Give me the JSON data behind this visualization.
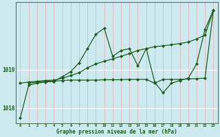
{
  "xlabel": "Graphe pression niveau de la mer (hPa)",
  "background_color": "#cce9f0",
  "plot_bg_color": "#cce9f0",
  "line_color": "#1a5c1a",
  "ylim": [
    1017.6,
    1020.75
  ],
  "xlim": [
    -0.5,
    23.5
  ],
  "yticks": [
    1018,
    1019
  ],
  "xticks": [
    0,
    1,
    2,
    3,
    4,
    5,
    6,
    7,
    8,
    9,
    10,
    11,
    12,
    13,
    14,
    15,
    16,
    17,
    18,
    19,
    20,
    21,
    22,
    23
  ],
  "series": [
    {
      "x": [
        0,
        1,
        2,
        3,
        4,
        5,
        6,
        7,
        8,
        9,
        10,
        11,
        12,
        13,
        14,
        15,
        16,
        17,
        18,
        19,
        20,
        21,
        22,
        23
      ],
      "y": [
        1018.65,
        1018.68,
        1018.7,
        1018.72,
        1018.73,
        1018.78,
        1018.85,
        1018.92,
        1019.05,
        1019.15,
        1019.22,
        1019.28,
        1019.35,
        1019.42,
        1019.5,
        1019.55,
        1019.6,
        1019.62,
        1019.65,
        1019.68,
        1019.72,
        1019.8,
        1019.9,
        1020.55
      ],
      "marker": "D",
      "markersize": 2.0,
      "linewidth": 0.9
    },
    {
      "x": [
        1,
        2,
        3,
        4,
        5,
        6,
        7,
        8,
        9,
        10,
        11,
        12,
        13,
        14,
        15,
        16,
        17,
        18,
        19,
        20,
        21,
        22,
        23
      ],
      "y": [
        1018.65,
        1018.68,
        1018.7,
        1018.7,
        1018.72,
        1018.73,
        1018.73,
        1018.73,
        1018.73,
        1018.74,
        1018.74,
        1018.74,
        1018.75,
        1018.75,
        1018.75,
        1018.65,
        1018.75,
        1018.75,
        1018.75,
        1018.76,
        1018.77,
        1018.78,
        1020.55
      ],
      "marker": "D",
      "markersize": 2.0,
      "linewidth": 0.9
    },
    {
      "x": [
        0,
        1,
        2,
        3,
        4,
        5,
        6,
        7,
        8,
        9,
        10,
        11,
        12,
        13,
        14,
        15,
        16,
        17,
        18,
        19,
        20,
        21,
        22,
        23
      ],
      "y": [
        1017.75,
        1018.6,
        1018.65,
        1018.68,
        1018.7,
        1018.82,
        1018.95,
        1019.18,
        1019.55,
        1019.92,
        1020.08,
        1019.35,
        1019.5,
        1019.55,
        1019.1,
        1019.55,
        1018.68,
        1018.4,
        1018.65,
        1018.72,
        1018.78,
        1019.15,
        1020.05,
        1020.55
      ],
      "marker": "D",
      "markersize": 2.0,
      "linewidth": 0.9
    }
  ]
}
